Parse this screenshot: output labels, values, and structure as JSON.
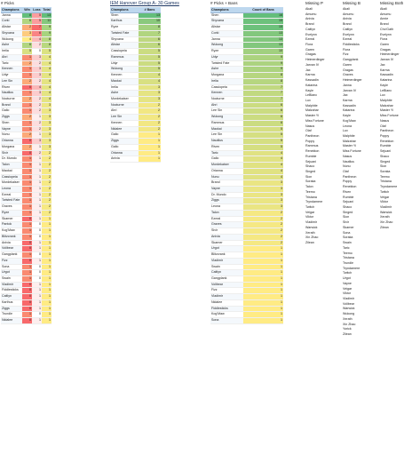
{
  "picks": {
    "title": "# Picks",
    "headers": [
      "Champions",
      "Win",
      "Loss",
      "Total"
    ],
    "rows": [
      [
        "Janna",
        8,
        5,
        13
      ],
      [
        "Corki",
        6,
        5,
        11
      ],
      [
        "Alistar",
        2,
        7,
        9
      ],
      [
        "Shyvana",
        3,
        6,
        9
      ],
      [
        "Wukong",
        4,
        4,
        8
      ],
      [
        "Ashe",
        6,
        2,
        8
      ],
      [
        "Irelia",
        5,
        0,
        5
      ],
      [
        "Ahri",
        1,
        3,
        4
      ],
      [
        "Taric",
        2,
        2,
        4
      ],
      [
        "Kennen",
        1,
        3,
        4
      ],
      [
        "Udyr",
        1,
        3,
        4
      ],
      [
        "Lee Sin",
        2,
        2,
        4
      ],
      [
        "Riven",
        0,
        4,
        4
      ],
      [
        "Nautilus",
        1,
        3,
        4
      ],
      [
        "Nocturne",
        2,
        2,
        4
      ],
      [
        "Brand",
        1,
        2,
        3
      ],
      [
        "Galio",
        1,
        2,
        3
      ],
      [
        "Ziggs",
        2,
        1,
        3
      ],
      [
        "Shen",
        1,
        2,
        3
      ],
      [
        "Vayne",
        1,
        2,
        3
      ],
      [
        "Nunu",
        2,
        1,
        3
      ],
      [
        "Orianna",
        0,
        3,
        3
      ],
      [
        "Morgana",
        2,
        1,
        3
      ],
      [
        "Sivir",
        0,
        2,
        2
      ],
      [
        "Dr. Mundo",
        1,
        1,
        2
      ],
      [
        "Talon",
        1,
        1,
        2
      ],
      [
        "Maokai",
        1,
        1,
        2
      ],
      [
        "Cassiopeia",
        1,
        1,
        2
      ],
      [
        "Mordekaiser",
        1,
        1,
        2
      ],
      [
        "Leona",
        1,
        1,
        2
      ],
      [
        "Ezreal",
        1,
        1,
        2
      ],
      [
        "Twisted Fate",
        1,
        1,
        2
      ],
      [
        "Graves",
        1,
        1,
        2
      ],
      [
        "Ryze",
        1,
        1,
        2
      ],
      [
        "Skarner",
        0,
        1,
        1
      ],
      [
        "Pantok",
        1,
        0,
        1
      ],
      [
        "Kog'Maw",
        1,
        0,
        1
      ],
      [
        "Blitzcrank",
        1,
        0,
        1
      ],
      [
        "Anivia",
        0,
        1,
        1
      ],
      [
        "Volibear",
        0,
        1,
        1
      ],
      [
        "Gangplank",
        1,
        0,
        1
      ],
      [
        "Fizz",
        0,
        1,
        1
      ],
      [
        "Sona",
        1,
        0,
        1
      ],
      [
        "Urgot",
        1,
        0,
        1
      ],
      [
        "Swain",
        1,
        0,
        1
      ],
      [
        "Vladimir",
        0,
        1,
        1
      ],
      [
        "Fiddlesticks",
        0,
        1,
        1
      ],
      [
        "Caitlyn",
        0,
        1,
        1
      ],
      [
        "Karthus",
        0,
        1,
        1
      ],
      [
        "Ziggs",
        0,
        1,
        1
      ],
      [
        "Trundle",
        1,
        0,
        1
      ],
      [
        "Nidalee",
        0,
        1,
        1
      ]
    ]
  },
  "bans_group": {
    "title": "IEM Hanover Group A- 30 Games",
    "headers": [
      "Champions",
      "# Bans"
    ],
    "rows": [
      [
        "Shen",
        13
      ],
      [
        "Karthus",
        10
      ],
      [
        "Ryze",
        8
      ],
      [
        "Twisted Fate",
        7
      ],
      [
        "Shyvana",
        6
      ],
      [
        "Alistar",
        6
      ],
      [
        "Cassiopeia",
        5
      ],
      [
        "Rammus",
        5
      ],
      [
        "Udyr",
        5
      ],
      [
        "Wukong",
        5
      ],
      [
        "Kennen",
        4
      ],
      [
        "Maokai",
        4
      ],
      [
        "Irelia",
        3
      ],
      [
        "Ashe",
        3
      ],
      [
        "Mordekaiser",
        3
      ],
      [
        "Nocturne",
        2
      ],
      [
        "Ahri",
        2
      ],
      [
        "Lee Sin",
        2
      ],
      [
        "Kennen",
        2
      ],
      [
        "Nidalee",
        2
      ],
      [
        "Galio",
        1
      ],
      [
        "Ziggs",
        1
      ],
      [
        "Galio",
        1
      ],
      [
        "Orianna",
        1
      ],
      [
        "Anivia",
        1
      ]
    ]
  },
  "picks_bans": {
    "title": "# Picks + Bans",
    "headers": [
      "Champions",
      "Count of Bans"
    ],
    "rows": [
      [
        "Shen",
        16
      ],
      [
        "Shyvana",
        15
      ],
      [
        "Alistar",
        15
      ],
      [
        "Corki",
        13
      ],
      [
        "Janna",
        13
      ],
      [
        "Wukong",
        13
      ],
      [
        "Ryze",
        10
      ],
      [
        "Udyr",
        9
      ],
      [
        "Twisted Fate",
        9
      ],
      [
        "Ashe",
        9
      ],
      [
        "Morgana",
        8
      ],
      [
        "Irelia",
        8
      ],
      [
        "Cassiopeia",
        7
      ],
      [
        "Kennen",
        7
      ],
      [
        "Nocturne",
        7
      ],
      [
        "Ahri",
        6
      ],
      [
        "Lee Sin",
        6
      ],
      [
        "Wukong",
        6
      ],
      [
        "Rammus",
        6
      ],
      [
        "Maokai",
        5
      ],
      [
        "Lee Sin",
        5
      ],
      [
        "Nautilus",
        5
      ],
      [
        "Riven",
        5
      ],
      [
        "Taric",
        4
      ],
      [
        "Galio",
        4
      ],
      [
        "Mordekaiser",
        4
      ],
      [
        "Orianna",
        4
      ],
      [
        "Nunu",
        4
      ],
      [
        "Brand",
        3
      ],
      [
        "Vayne",
        3
      ],
      [
        "Dr. Mundo",
        3
      ],
      [
        "Ziggs",
        3
      ],
      [
        "Leona",
        3
      ],
      [
        "Talon",
        2
      ],
      [
        "Ezreal",
        2
      ],
      [
        "Graves",
        2
      ],
      [
        "Sivir",
        2
      ],
      [
        "Anivia",
        2
      ],
      [
        "Skarner",
        2
      ],
      [
        "Urgot",
        1
      ],
      [
        "Blitzcrank",
        1
      ],
      [
        "Vladimir",
        1
      ],
      [
        "Swain",
        1
      ],
      [
        "Caitlyn",
        1
      ],
      [
        "Gangplank",
        1
      ],
      [
        "Volibear",
        1
      ],
      [
        "Fizz",
        1
      ],
      [
        "Vladimir",
        1
      ],
      [
        "Nidalee",
        1
      ],
      [
        "Fiddlesticks",
        1
      ],
      [
        "Kog'Maw",
        1
      ],
      [
        "Sona",
        1
      ]
    ]
  },
  "missing_p": {
    "title": "Missing P",
    "items": [
      "Akali",
      "Amumu",
      "Anivia",
      "Brand",
      "Caitlyn",
      "Evelynn",
      "Ezreal",
      "Flora",
      "Garen",
      "Gragas",
      "Heimerdinger",
      "Jarvan IV",
      "Jax",
      "Karma",
      "Kassadin",
      "Katarina",
      "Kayle",
      "LeBlanc",
      "Lux",
      "Malphite",
      "Malzahar",
      "Master Yi",
      "Miss Fortune",
      "Nasus",
      "Olaf",
      "Pantheon",
      "Poppy",
      "Rammus",
      "Renekton",
      "Rumble",
      "Sejuani",
      "Shaco",
      "Singed",
      "Sion",
      "Soraka",
      "Talon",
      "Teemo",
      "Tristana",
      "Tryndamere",
      "Twitch",
      "Veigar",
      "Viktor",
      "Vladimir",
      "Warwick",
      "Xerath",
      "Xin Zhao",
      "Zilean"
    ]
  },
  "missing_b": {
    "title": "Missing B",
    "items": [
      "Akali",
      "Amumu",
      "Anivia",
      "Brand",
      "Caitlyn",
      "Evelynn",
      "Ezreal",
      "Fiddlesticks",
      "Fiora",
      "Fizz",
      "Gangplank",
      "Garen",
      "Gragas",
      "Graves",
      "Heimerdinger",
      "Janna",
      "Jarvan IV",
      "Jax",
      "Karma",
      "Kassadin",
      "Katarina",
      "Kayle",
      "Kog'Maw",
      "Leona",
      "Lux",
      "Malphite",
      "Malzahar",
      "Master Yi",
      "Miss Fortune",
      "Nasus",
      "Nautilus",
      "Nunu",
      "Olaf",
      "Pantheon",
      "Poppy",
      "Renekton",
      "Riven",
      "Rumble",
      "Sejuani",
      "Shaco",
      "Singed",
      "Sion",
      "Sivir",
      "Skarner",
      "Sona",
      "Soraka",
      "Swain",
      "Taric",
      "Teemo",
      "Tristana",
      "Trundle",
      "Tryndamere",
      "Twitch",
      "Urgot",
      "Vayne",
      "Veigar",
      "Viktor",
      "Vladimir",
      "Volibear",
      "Warwick",
      "Wukong",
      "Xerath",
      "Xin Zhao",
      "Yorick",
      "Zilean"
    ]
  },
  "missing_both": {
    "title": "Missing Both",
    "items": [
      "Akali",
      "Amumu",
      "Annie",
      "Brand",
      "Cho'Gath",
      "Evelynn",
      "Fiora",
      "Garen",
      "Gragas",
      "Heimerdinger",
      "Jarvan IV",
      "Jax",
      "Karma",
      "Kassadin",
      "Katarina",
      "Kayle",
      "LeBlanc",
      "Lux",
      "Malphite",
      "Malzahar",
      "Master Yi",
      "Miss Fortune",
      "Nasus",
      "Olaf",
      "Pantheon",
      "Poppy",
      "Renekton",
      "Rumble",
      "Sejuani",
      "Shaco",
      "Singed",
      "Sion",
      "Soraka",
      "Teemo",
      "Tristana",
      "Tryndamere",
      "Twitch",
      "Veigar",
      "Viktor",
      "Vladimir",
      "Warwick",
      "Xerath",
      "Xin Zhao",
      "Zilean"
    ]
  },
  "colors": {
    "header": "#bdd7ee",
    "green": "#63be7b",
    "yellow": "#ffeb84",
    "red": "#f8696b",
    "white": "#ffffff"
  }
}
